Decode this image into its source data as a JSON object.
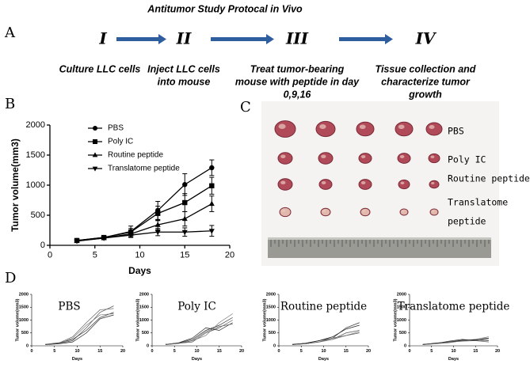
{
  "protocol": {
    "title": "Antitumor Study Protocal in Vivo",
    "steps": [
      {
        "numeral": "I",
        "lines": [
          "Culture LLC cells"
        ]
      },
      {
        "numeral": "II",
        "lines": [
          "Inject  LLC cells",
          "into mouse"
        ]
      },
      {
        "numeral": "III",
        "lines": [
          "Treat tumor-bearing",
          "mouse with  peptide in day",
          "0,9,16"
        ]
      },
      {
        "numeral": "IV",
        "lines": [
          "Tissue collection and",
          "characterize  tumor",
          "growth"
        ]
      }
    ]
  },
  "panel_labels": [
    "A",
    "B",
    "C",
    "D"
  ],
  "photo": {
    "labels": [
      [
        "PBS"
      ],
      [
        "Poly IC"
      ],
      [
        "Routine peptide"
      ],
      [
        "Translatome",
        "peptide"
      ]
    ]
  },
  "chart_data": [
    {
      "type": "line",
      "xlabel": "Days",
      "ylabel": "Tumor volume(mm3)",
      "legend": "upper left",
      "x": [
        3,
        6,
        9,
        12,
        15,
        18
      ],
      "xlim": [
        0,
        20
      ],
      "xticks": [
        0,
        5,
        10,
        15,
        20
      ],
      "ylim": [
        0,
        2000
      ],
      "yticks": [
        0,
        500,
        1000,
        1500,
        2000
      ],
      "series": [
        {
          "name": "PBS",
          "color": "#000000",
          "marker": "circle",
          "values": [
            80,
            130,
            230,
            580,
            1010,
            1290
          ],
          "errors": [
            20,
            20,
            90,
            150,
            180,
            130
          ]
        },
        {
          "name": "Poly IC",
          "color": "#000000",
          "marker": "square",
          "values": [
            80,
            130,
            220,
            530,
            710,
            990
          ],
          "errors": [
            20,
            20,
            60,
            120,
            150,
            140
          ]
        },
        {
          "name": "Routine peptide",
          "color": "#000000",
          "marker": "triangle",
          "values": [
            75,
            120,
            190,
            340,
            440,
            690
          ],
          "errors": [
            15,
            15,
            50,
            80,
            120,
            130
          ]
        },
        {
          "name": "Translatome peptide",
          "color": "#000000",
          "marker": "triangle-down",
          "values": [
            70,
            120,
            170,
            220,
            220,
            240
          ],
          "errors": [
            15,
            15,
            40,
            60,
            70,
            90
          ]
        }
      ]
    },
    {
      "type": "line",
      "title": "PBS",
      "xlabel": "Days",
      "ylabel": "Tumor volume(mm3)",
      "x": [
        3,
        6,
        9,
        12,
        15,
        18
      ],
      "xlim": [
        0,
        20
      ],
      "xticks": [
        0,
        5,
        10,
        15,
        20
      ],
      "ylim": [
        0,
        2000
      ],
      "yticks": [
        0,
        500,
        1000,
        1500,
        2000
      ],
      "series": [
        {
          "color": "#555555",
          "values": [
            50,
            100,
            200,
            700,
            1300,
            1550
          ]
        },
        {
          "color": "#333333",
          "values": [
            60,
            120,
            250,
            600,
            1100,
            1300
          ]
        },
        {
          "color": "#777777",
          "values": [
            50,
            90,
            300,
            800,
            1200,
            1250
          ]
        },
        {
          "color": "#222222",
          "values": [
            40,
            80,
            150,
            500,
            1050,
            1200
          ]
        },
        {
          "color": "#666666",
          "values": [
            50,
            110,
            350,
            900,
            1400,
            1450
          ]
        }
      ]
    },
    {
      "type": "line",
      "title": "Poly IC",
      "xlabel": "Days",
      "ylabel": "Tumor volume(mm3)",
      "x": [
        3,
        6,
        9,
        12,
        15,
        18
      ],
      "xlim": [
        0,
        20
      ],
      "xticks": [
        0,
        5,
        10,
        15,
        20
      ],
      "ylim": [
        0,
        2000
      ],
      "yticks": [
        0,
        500,
        1000,
        1500,
        2000
      ],
      "series": [
        {
          "color": "#555555",
          "values": [
            50,
            100,
            150,
            500,
            700,
            1000
          ]
        },
        {
          "color": "#333333",
          "values": [
            60,
            110,
            250,
            600,
            800,
            1100
          ]
        },
        {
          "color": "#777777",
          "values": [
            40,
            90,
            200,
            400,
            900,
            1250
          ]
        },
        {
          "color": "#222222",
          "values": [
            50,
            120,
            300,
            700,
            600,
            900
          ]
        },
        {
          "color": "#666666",
          "values": [
            60,
            100,
            200,
            550,
            750,
            850
          ]
        }
      ]
    },
    {
      "type": "line",
      "title": "Routine peptide",
      "xlabel": "Days",
      "ylabel": "Tumor volume(mm3)",
      "x": [
        3,
        6,
        9,
        12,
        15,
        18
      ],
      "xlim": [
        0,
        20
      ],
      "xticks": [
        0,
        5,
        10,
        15,
        20
      ],
      "ylim": [
        0,
        2000
      ],
      "yticks": [
        0,
        500,
        1000,
        1500,
        2000
      ],
      "series": [
        {
          "color": "#555555",
          "values": [
            50,
            80,
            150,
            250,
            500,
            600
          ]
        },
        {
          "color": "#333333",
          "values": [
            60,
            100,
            200,
            300,
            700,
            900
          ]
        },
        {
          "color": "#777777",
          "values": [
            40,
            90,
            150,
            250,
            400,
            550
          ]
        },
        {
          "color": "#222222",
          "values": [
            50,
            100,
            200,
            350,
            650,
            800
          ]
        },
        {
          "color": "#666666",
          "values": [
            40,
            80,
            150,
            300,
            400,
            500
          ]
        }
      ]
    },
    {
      "type": "line",
      "title": "Translatome peptide",
      "xlabel": "Days",
      "ylabel": "Tumor volume(mm3)",
      "x": [
        3,
        6,
        9,
        12,
        15,
        18
      ],
      "xlim": [
        0,
        20
      ],
      "xticks": [
        0,
        5,
        10,
        15,
        20
      ],
      "ylim": [
        0,
        2000
      ],
      "yticks": [
        0,
        500,
        1000,
        1500,
        2000
      ],
      "series": [
        {
          "color": "#555555",
          "values": [
            50,
            100,
            150,
            200,
            250,
            300
          ]
        },
        {
          "color": "#333333",
          "values": [
            60,
            90,
            180,
            250,
            200,
            280
          ]
        },
        {
          "color": "#777777",
          "values": [
            40,
            80,
            120,
            200,
            250,
            350
          ]
        },
        {
          "color": "#222222",
          "values": [
            50,
            110,
            150,
            220,
            230,
            200
          ]
        },
        {
          "color": "#666666",
          "values": [
            40,
            90,
            140,
            180,
            200,
            150
          ]
        }
      ]
    }
  ]
}
